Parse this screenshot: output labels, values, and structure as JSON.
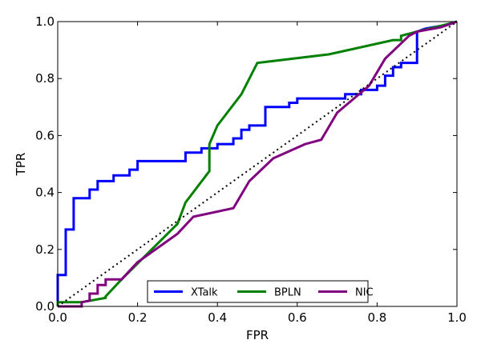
{
  "chart_data": {
    "type": "line",
    "xlabel": "FPR",
    "ylabel": "TPR",
    "xlim": [
      0.0,
      1.0
    ],
    "ylim": [
      0.0,
      1.0
    ],
    "xticks": [
      "0.0",
      "0.2",
      "0.4",
      "0.6",
      "0.8",
      "1.0"
    ],
    "yticks": [
      "0.0",
      "0.2",
      "0.4",
      "0.6",
      "0.8",
      "1.0"
    ],
    "grid": false,
    "legend_placement": "bottom-center",
    "series": [
      {
        "name": "XTalk",
        "color": "#0000ff",
        "x": [
          0.0,
          0.0,
          0.02,
          0.02,
          0.04,
          0.04,
          0.08,
          0.08,
          0.1,
          0.1,
          0.14,
          0.14,
          0.18,
          0.18,
          0.2,
          0.2,
          0.32,
          0.32,
          0.36,
          0.36,
          0.4,
          0.4,
          0.44,
          0.44,
          0.46,
          0.46,
          0.48,
          0.48,
          0.52,
          0.52,
          0.58,
          0.58,
          0.6,
          0.6,
          0.72,
          0.72,
          0.76,
          0.76,
          0.8,
          0.8,
          0.82,
          0.82,
          0.84,
          0.84,
          0.84,
          0.84,
          0.86,
          0.86,
          0.9,
          0.9,
          0.92,
          0.94,
          0.96,
          0.98,
          1.0
        ],
        "y": [
          0.0,
          0.11,
          0.11,
          0.27,
          0.27,
          0.38,
          0.38,
          0.41,
          0.41,
          0.44,
          0.44,
          0.46,
          0.46,
          0.48,
          0.48,
          0.51,
          0.51,
          0.54,
          0.54,
          0.555,
          0.555,
          0.57,
          0.57,
          0.59,
          0.59,
          0.62,
          0.62,
          0.635,
          0.635,
          0.7,
          0.7,
          0.715,
          0.715,
          0.73,
          0.73,
          0.745,
          0.745,
          0.76,
          0.76,
          0.775,
          0.775,
          0.81,
          0.81,
          0.825,
          0.825,
          0.84,
          0.84,
          0.855,
          0.855,
          0.965,
          0.975,
          0.98,
          0.985,
          0.99,
          1.0
        ]
      },
      {
        "name": "BPLN",
        "color": "#008000",
        "x": [
          0.0,
          0.0,
          0.06,
          0.12,
          0.12,
          0.16,
          0.3,
          0.32,
          0.38,
          0.38,
          0.4,
          0.46,
          0.5,
          0.68,
          0.84,
          0.86,
          0.86,
          0.9,
          0.96,
          1.0
        ],
        "y": [
          0.0,
          0.015,
          0.015,
          0.03,
          0.035,
          0.095,
          0.29,
          0.365,
          0.475,
          0.57,
          0.635,
          0.745,
          0.855,
          0.885,
          0.935,
          0.935,
          0.95,
          0.965,
          0.985,
          1.0
        ],
        "ymin_note": ""
      },
      {
        "name": "NIC",
        "color": "#800080",
        "x": [
          0.0,
          0.06,
          0.06,
          0.08,
          0.08,
          0.1,
          0.1,
          0.12,
          0.12,
          0.16,
          0.2,
          0.3,
          0.34,
          0.44,
          0.48,
          0.54,
          0.62,
          0.66,
          0.7,
          0.78,
          0.82,
          0.88,
          0.9,
          0.96,
          1.0
        ],
        "y": [
          0.0,
          0.0,
          0.015,
          0.02,
          0.045,
          0.045,
          0.075,
          0.075,
          0.095,
          0.095,
          0.155,
          0.255,
          0.315,
          0.345,
          0.44,
          0.52,
          0.57,
          0.585,
          0.68,
          0.775,
          0.87,
          0.95,
          0.965,
          0.98,
          1.0
        ]
      },
      {
        "name": "",
        "color": "#000000",
        "style": "dotted",
        "x": [
          0.0,
          1.0
        ],
        "y": [
          0.0,
          1.0
        ]
      }
    ],
    "legend": [
      "XTalk",
      "BPLN",
      "NIC"
    ]
  }
}
